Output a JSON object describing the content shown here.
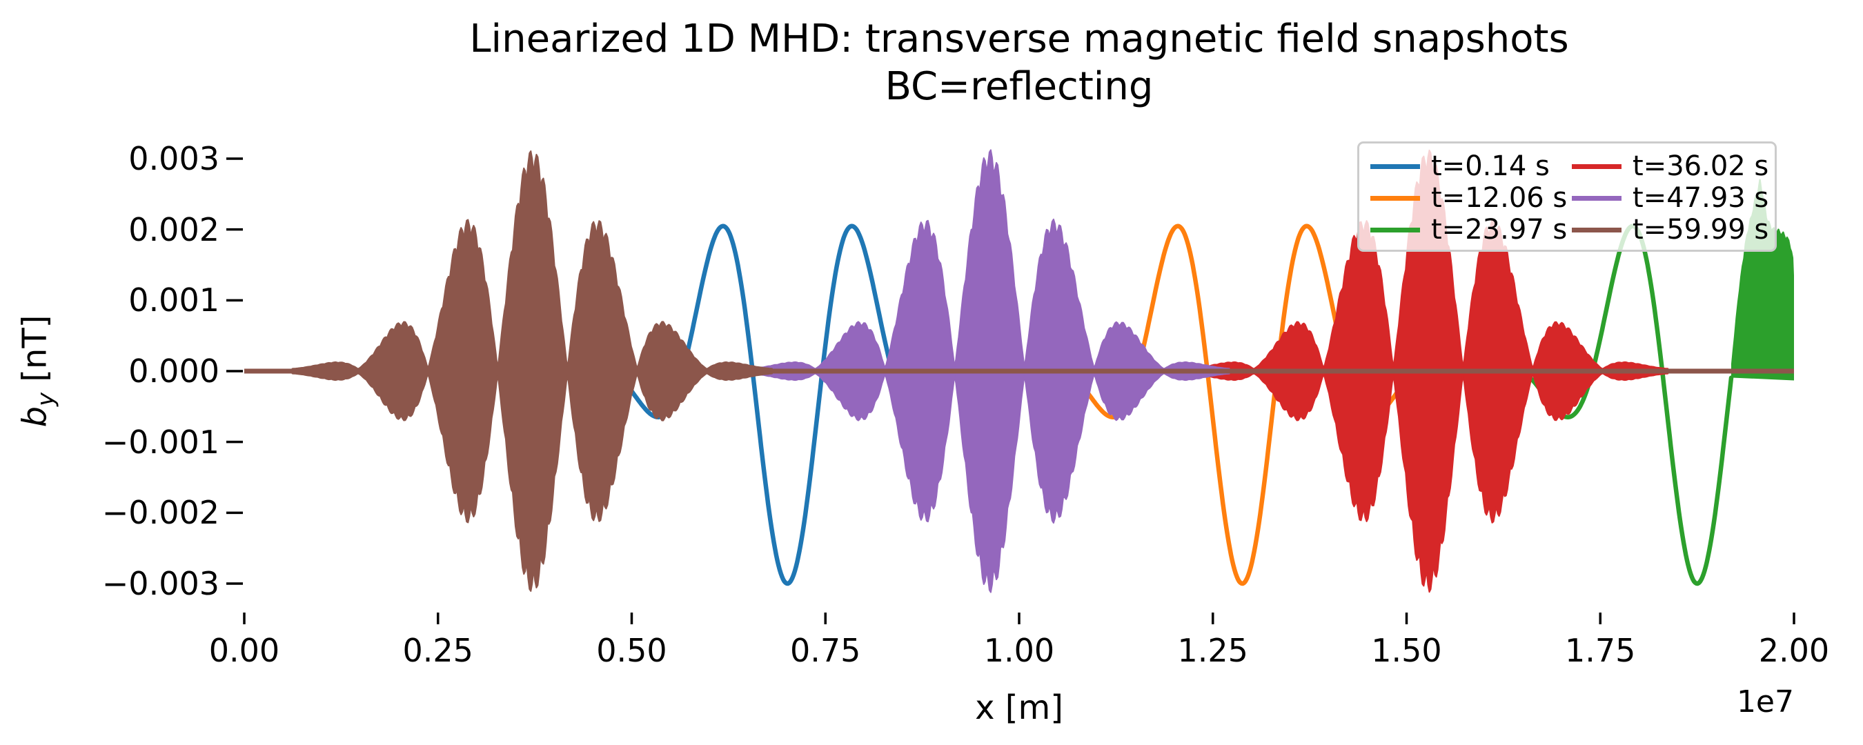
{
  "figure": {
    "title_line1": "Linearized 1D MHD: transverse magnetic field snapshots",
    "title_line2": "BC=reflecting"
  },
  "axes": {
    "xlabel": "x [m]",
    "ylabel_symbol": "b",
    "ylabel_subscript": "y",
    "ylabel_unit": "[nT]",
    "offset_text": "1e7",
    "x_tick_labels": [
      "0.00",
      "0.25",
      "0.50",
      "0.75",
      "1.00",
      "1.25",
      "1.50",
      "1.75",
      "2.00"
    ],
    "y_tick_labels": [
      "0.003",
      "0.002",
      "0.001",
      "0.000",
      "−0.001",
      "−0.002",
      "−0.003"
    ]
  },
  "legend": {
    "entries": [
      {
        "label": "t=0.14 s",
        "color": "#1f77b4"
      },
      {
        "label": "t=12.06 s",
        "color": "#ff7f0e"
      },
      {
        "label": "t=23.97 s",
        "color": "#2ca02c"
      },
      {
        "label": "t=36.02 s",
        "color": "#d62728"
      },
      {
        "label": "t=47.93 s",
        "color": "#9467bd"
      },
      {
        "label": "t=59.99 s",
        "color": "#8c564b"
      }
    ]
  },
  "chart_data": {
    "type": "line",
    "title": "Linearized 1D MHD: transverse magnetic field snapshots",
    "subtitle": "BC=reflecting",
    "xlabel": "x [m]",
    "ylabel": "b_y [nT]",
    "xlim_m": [
      0,
      20000000
    ],
    "ylim_nT": [
      -0.0034,
      0.0034
    ],
    "x_tick_values_m": [
      0,
      2500000,
      5000000,
      7500000,
      10000000,
      12500000,
      15000000,
      17500000,
      20000000
    ],
    "y_tick_values_nT": [
      0.003,
      0.002,
      0.001,
      0.0,
      -0.001,
      -0.002,
      -0.003
    ],
    "grid": false,
    "legend_position": "upper right",
    "boundary_condition": "reflecting",
    "carrier_wavelength_m": 1800000,
    "series": [
      {
        "name": "t=0.14 s",
        "time_s": 0.14,
        "color": "#1f77b4",
        "form": "smooth_gaussian_wavepacket",
        "center_m": 7010000,
        "center_peak_nT": -0.003,
        "side_crest_nT": 0.002,
        "envelope_sigma_m": 1400000
      },
      {
        "name": "t=12.06 s",
        "time_s": 12.06,
        "color": "#ff7f0e",
        "form": "smooth_gaussian_wavepacket",
        "center_m": 12880000,
        "center_peak_nT": -0.003,
        "side_crest_nT": 0.002,
        "envelope_sigma_m": 1400000
      },
      {
        "name": "t=23.97 s",
        "time_s": 23.97,
        "color": "#2ca02c",
        "form": "smooth_packet_reflecting_at_right_wall",
        "center_m": 18750000,
        "center_peak_nT": -0.003,
        "side_crest_nT": 0.002,
        "envelope_sigma_m": 1400000,
        "reflected_blob_top_profile_m_nT": [
          [
            19200000,
            0.0001
          ],
          [
            19235000,
            0.0005
          ],
          [
            19280000,
            0.001
          ],
          [
            19335000,
            0.0015
          ],
          [
            19395000,
            0.00195
          ],
          [
            19460000,
            0.00225
          ],
          [
            19515000,
            0.00252
          ],
          [
            19560000,
            0.0027
          ],
          [
            19600000,
            0.0025
          ],
          [
            19640000,
            0.00222
          ],
          [
            19690000,
            0.00207
          ],
          [
            19740000,
            0.00202
          ],
          [
            19800000,
            0.002
          ],
          [
            19860000,
            0.00196
          ],
          [
            19910000,
            0.0019
          ],
          [
            19950000,
            0.00182
          ],
          [
            19980000,
            0.0016
          ],
          [
            19995000,
            0.0012
          ],
          [
            20000000,
            0.0
          ]
        ]
      },
      {
        "name": "t=36.02 s",
        "time_s": 36.02,
        "color": "#d62728",
        "form": "dispersed_oscillatory_packet",
        "center_m": 15280000,
        "envelope_peak_nT": 0.0031,
        "side_lobe_nT": 0.002,
        "envelope_sigma_m": 1400000
      },
      {
        "name": "t=47.93 s",
        "time_s": 47.93,
        "color": "#9467bd",
        "form": "dispersed_oscillatory_packet",
        "center_m": 9620000,
        "envelope_peak_nT": 0.0031,
        "side_lobe_nT": 0.002,
        "envelope_sigma_m": 1400000
      },
      {
        "name": "t=59.99 s",
        "time_s": 59.99,
        "color": "#8c564b",
        "form": "dispersed_oscillatory_packet",
        "center_m": 3720000,
        "envelope_peak_nT": 0.0031,
        "side_lobe_nT": 0.002,
        "envelope_sigma_m": 1400000,
        "draws_zero_baseline": true
      }
    ]
  }
}
